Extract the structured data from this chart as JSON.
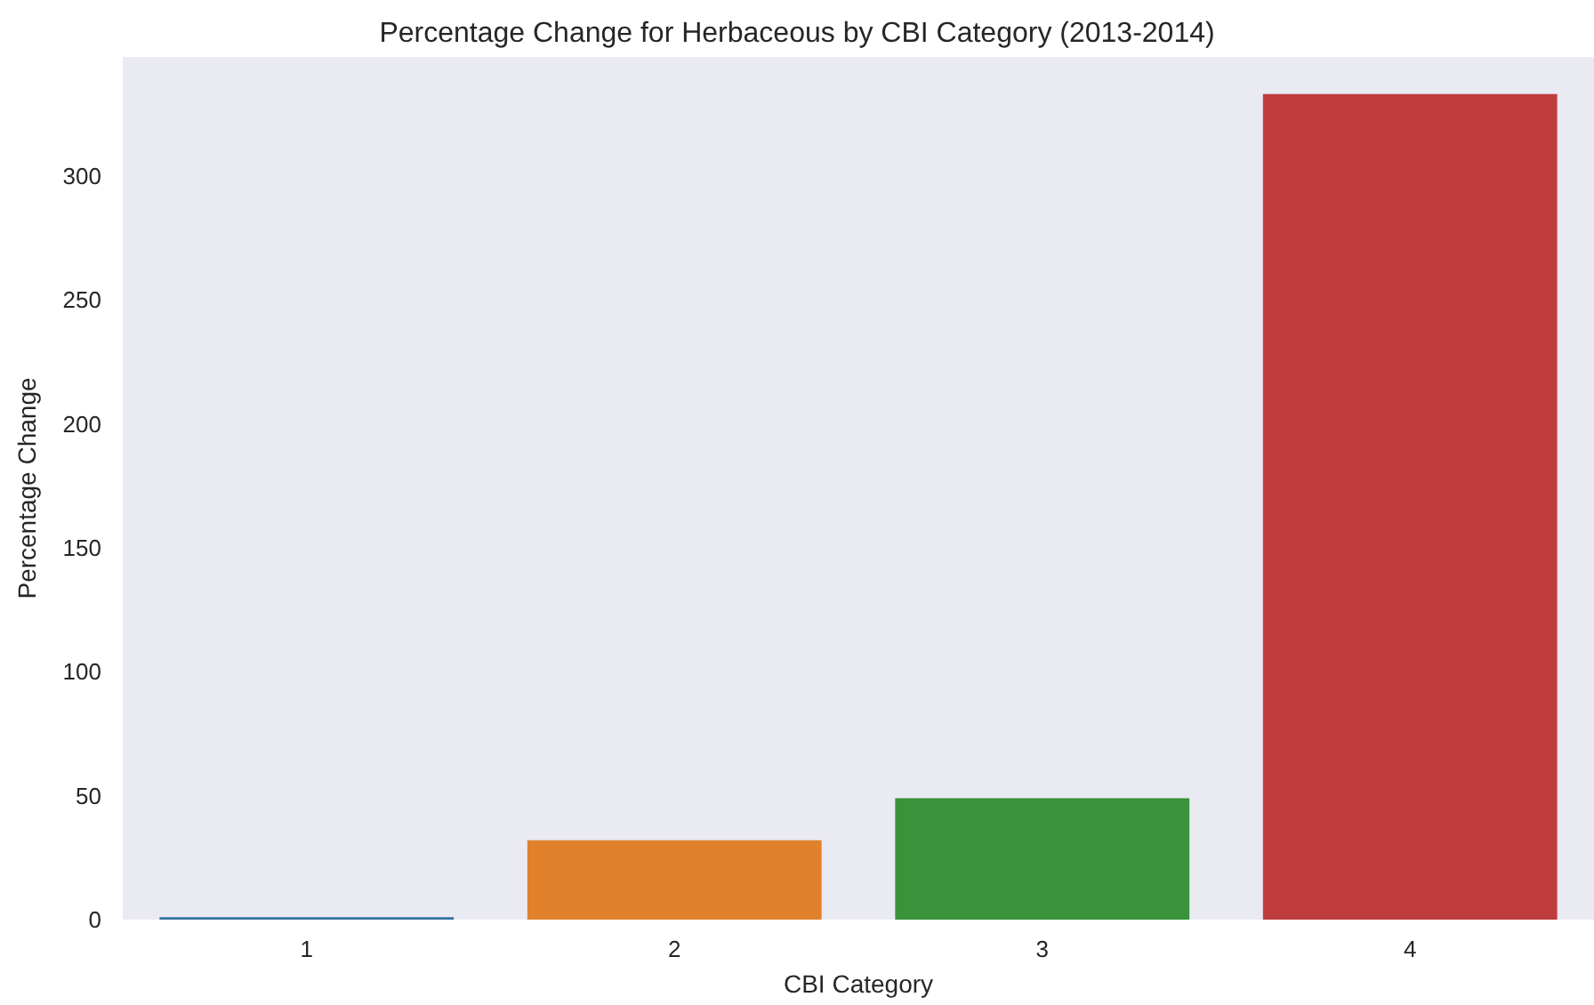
{
  "chart_data": {
    "type": "bar",
    "title": "Percentage Change for Herbaceous by CBI Category (2013-2014)",
    "xlabel": "CBI Category",
    "ylabel": "Percentage Change",
    "categories": [
      "1",
      "2",
      "3",
      "4"
    ],
    "values": [
      1,
      32,
      49,
      333
    ],
    "colors": [
      "#3274a1",
      "#e1812c",
      "#3a923a",
      "#c03d3e"
    ],
    "ylim": [
      0,
      348
    ],
    "yticks": [
      0,
      50,
      100,
      150,
      200,
      250,
      300
    ],
    "grid": false
  }
}
